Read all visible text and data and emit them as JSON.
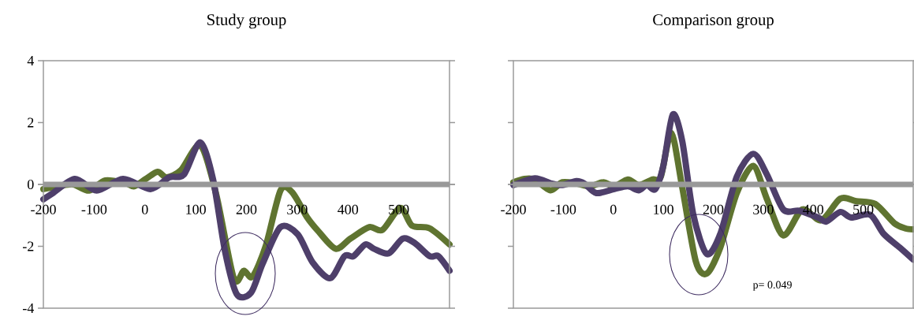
{
  "chart_data": [
    {
      "type": "line",
      "title": "Study group",
      "xlim": [
        -200,
        600
      ],
      "ylim": [
        -4,
        4
      ],
      "xticks": [
        -200,
        -100,
        0,
        100,
        200,
        300,
        400,
        500
      ],
      "yticks": [
        -4,
        -2,
        0,
        2,
        4
      ],
      "series": [
        {
          "color": "#5f7430",
          "x": [
            -200,
            -170,
            -141,
            -110,
            -78,
            -38,
            -21,
            2,
            25,
            43,
            71,
            109,
            140,
            175,
            195,
            212,
            238,
            267,
            290,
            319,
            342,
            376,
            405,
            442,
            468,
            503,
            526,
            561,
            600
          ],
          "values": [
            -0.15,
            -0.06,
            0,
            -0.2,
            0.13,
            0.04,
            -0.06,
            0.18,
            0.41,
            0.23,
            0.46,
            1.26,
            -0.29,
            -3.03,
            -2.79,
            -2.98,
            -1.99,
            -0.2,
            -0.25,
            -1.05,
            -1.52,
            -2.08,
            -1.75,
            -1.38,
            -1.47,
            -0.76,
            -1.33,
            -1.42,
            -1.94
          ]
        },
        {
          "color": "#4e3f6a",
          "x": [
            -200,
            -182,
            -138,
            -95,
            -43,
            11,
            48,
            77,
            109,
            134,
            158,
            181,
            209,
            232,
            267,
            301,
            330,
            365,
            393,
            411,
            434,
            451,
            480,
            508,
            532,
            561,
            578,
            600
          ],
          "values": [
            -0.48,
            -0.29,
            0.18,
            -0.2,
            0.18,
            -0.15,
            0.23,
            0.32,
            1.36,
            0.18,
            -2.18,
            -3.55,
            -3.5,
            -2.56,
            -1.38,
            -1.61,
            -2.51,
            -3.03,
            -2.32,
            -2.32,
            -1.94,
            -2.08,
            -2.23,
            -1.75,
            -1.9,
            -2.32,
            -2.32,
            -2.79
          ]
        }
      ]
    },
    {
      "type": "line",
      "title": "Comparison group",
      "xlim": [
        -200,
        600
      ],
      "ylim": [
        -4,
        4
      ],
      "xticks": [
        -200,
        -100,
        0,
        100,
        200,
        300,
        400,
        500
      ],
      "yticks": [
        -4,
        -2,
        0,
        2,
        4
      ],
      "tick_labels": "x",
      "annotations": [
        "p= 0.049"
      ],
      "series": [
        {
          "color": "#5f7430",
          "x": [
            -200,
            -178,
            -157,
            -126,
            -102,
            -74,
            -47,
            -20,
            2,
            29,
            51,
            78,
            95,
            116,
            138,
            165,
            187,
            214,
            247,
            280,
            307,
            340,
            378,
            416,
            454,
            486,
            524,
            562,
            584,
            600
          ],
          "values": [
            0.07,
            0.18,
            0.16,
            -0.19,
            0.07,
            0.03,
            -0.06,
            0.07,
            -0.06,
            0.16,
            -0.02,
            0.16,
            0.25,
            1.66,
            -0.11,
            -2.49,
            -2.88,
            -2.04,
            -0.28,
            0.6,
            -0.46,
            -1.65,
            -0.81,
            -1.16,
            -0.46,
            -0.54,
            -0.63,
            -1.25,
            -1.42,
            -1.45
          ]
        },
        {
          "color": "#4e3f6a",
          "x": [
            -200,
            -157,
            -124,
            -102,
            -74,
            -58,
            -34,
            2,
            29,
            51,
            67,
            84,
            100,
            119,
            138,
            160,
            187,
            214,
            247,
            280,
            307,
            340,
            372,
            410,
            426,
            454,
            476,
            514,
            541,
            573,
            600
          ],
          "values": [
            -0.02,
            0.2,
            0.03,
            -0.02,
            0.11,
            0.03,
            -0.28,
            -0.15,
            -0.06,
            -0.19,
            -0.02,
            -0.15,
            0.6,
            2.26,
            1.39,
            -0.98,
            -2.25,
            -1.6,
            0.25,
            0.99,
            0.33,
            -0.81,
            -0.85,
            -1.07,
            -1.2,
            -0.89,
            -1.07,
            -0.98,
            -1.6,
            -2.04,
            -2.43
          ]
        }
      ]
    }
  ]
}
